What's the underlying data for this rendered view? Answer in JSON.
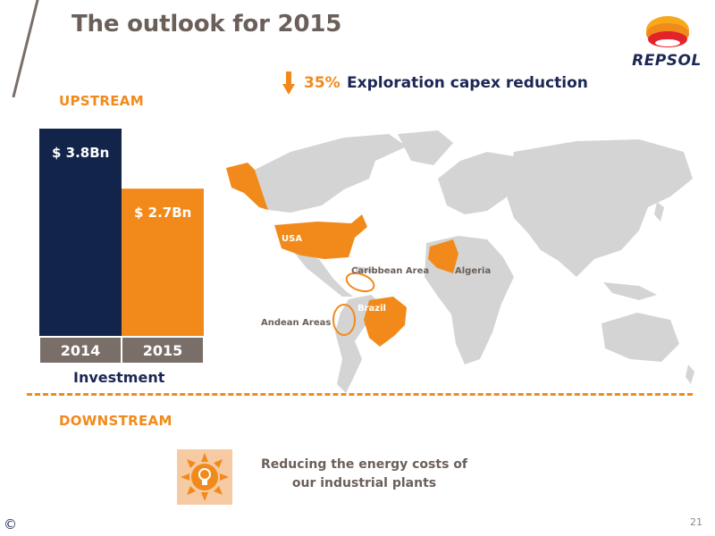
{
  "slide": {
    "title": "The outlook for 2015",
    "page_number": "21",
    "copyright": "©"
  },
  "brand": {
    "name": "REPSOL",
    "colors": {
      "orange": "#f28a1b",
      "navy": "#1b2754",
      "taupe": "#7a6e68",
      "red": "#e2232a",
      "map_gray": "#d4d4d4"
    }
  },
  "upstream": {
    "label": "UPSTREAM",
    "capex": {
      "percent": "35%",
      "text": "Exploration capex reduction",
      "arrow_icon": "down-arrow-icon"
    },
    "investment_label": "Investment"
  },
  "chart_data": {
    "type": "bar",
    "categories": [
      "2014",
      "2015"
    ],
    "values": [
      3.8,
      2.7
    ],
    "value_labels": [
      "$ 3.8Bn",
      "$ 2.7Bn"
    ],
    "colors": [
      "#12244a",
      "#f28a1b"
    ],
    "xlabel": "Investment",
    "ylim": [
      0,
      3.8
    ]
  },
  "map": {
    "highlighted_regions": [
      "USA",
      "Algeria",
      "Brazil"
    ],
    "labels": {
      "usa": "USA",
      "caribbean": "Caribbean Area",
      "algeria": "Algeria",
      "brazil": "Brazil",
      "andean": "Andean Areas"
    }
  },
  "downstream": {
    "label": "DOWNSTREAM",
    "text_line1": "Reducing the energy costs of",
    "text_line2": "our industrial plants",
    "icon": "sun-lightbulb-icon"
  }
}
